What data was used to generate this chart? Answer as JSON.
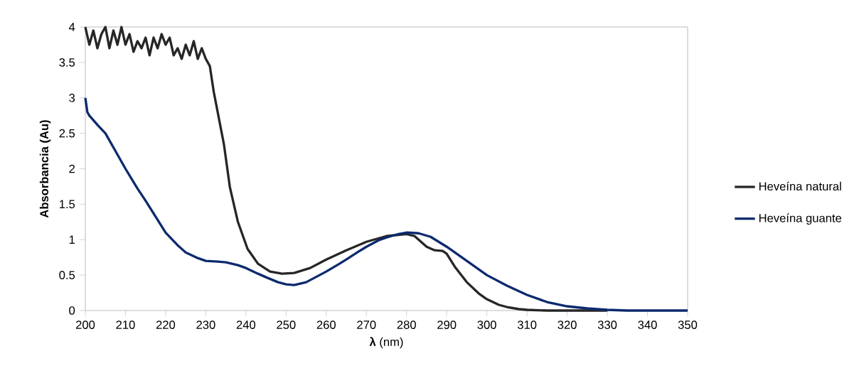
{
  "chart_data": {
    "type": "line",
    "xlabel": "**λ** (nm)",
    "ylabel": "Absorbancia  (Au)",
    "xlim": [
      200,
      350
    ],
    "ylim": [
      0,
      4
    ],
    "xticks": [
      200,
      210,
      220,
      230,
      240,
      250,
      260,
      270,
      280,
      290,
      300,
      310,
      320,
      330,
      340,
      350
    ],
    "yticks": [
      0,
      0.5,
      1,
      1.5,
      2,
      2.5,
      3,
      3.5,
      4
    ],
    "grid": false,
    "legend": "right",
    "marker": "none",
    "line_style": "solid",
    "series": [
      {
        "name": "Heveína natural",
        "color": "#262626",
        "x": [
          200,
          201,
          202,
          203,
          204,
          205,
          206,
          207,
          208,
          209,
          210,
          211,
          212,
          213,
          214,
          215,
          216,
          217,
          218,
          219,
          220,
          221,
          222,
          223,
          224,
          225,
          226,
          227,
          228,
          229,
          230,
          231,
          232,
          234.5,
          236,
          238,
          240.4,
          243,
          246,
          249,
          252,
          256,
          260,
          265,
          270,
          275,
          280,
          282,
          285,
          287,
          289,
          290,
          292,
          295,
          298,
          300,
          303,
          305,
          308,
          310,
          315,
          320,
          330
        ],
        "values": [
          4.0,
          3.75,
          3.95,
          3.7,
          3.9,
          4.0,
          3.7,
          3.95,
          3.75,
          4.0,
          3.75,
          3.9,
          3.65,
          3.8,
          3.7,
          3.85,
          3.6,
          3.85,
          3.7,
          3.9,
          3.75,
          3.85,
          3.6,
          3.7,
          3.55,
          3.75,
          3.6,
          3.8,
          3.55,
          3.7,
          3.55,
          3.45,
          3.08,
          2.35,
          1.74,
          1.25,
          0.87,
          0.66,
          0.55,
          0.52,
          0.53,
          0.6,
          0.72,
          0.85,
          0.97,
          1.05,
          1.08,
          1.05,
          0.9,
          0.85,
          0.84,
          0.8,
          0.62,
          0.4,
          0.24,
          0.16,
          0.08,
          0.05,
          0.02,
          0.01,
          0,
          0,
          0
        ]
      },
      {
        "name": "Heveína guante",
        "color": "#0b2a6e",
        "x": [
          200,
          200.5,
          201,
          203,
          205,
          208,
          210,
          213,
          215,
          218,
          220,
          223,
          225,
          228,
          230,
          233,
          235,
          238,
          240,
          243,
          245,
          248,
          250,
          252,
          255,
          258,
          260,
          263,
          265,
          268,
          270,
          273,
          275,
          278,
          280,
          283,
          286,
          290,
          295,
          300,
          305,
          310,
          315,
          320,
          325,
          330,
          335,
          340,
          350
        ],
        "values": [
          3.0,
          2.8,
          2.75,
          2.62,
          2.5,
          2.2,
          2.0,
          1.72,
          1.55,
          1.28,
          1.1,
          0.92,
          0.82,
          0.74,
          0.7,
          0.69,
          0.68,
          0.64,
          0.6,
          0.52,
          0.47,
          0.4,
          0.37,
          0.36,
          0.4,
          0.49,
          0.55,
          0.65,
          0.72,
          0.83,
          0.9,
          0.99,
          1.03,
          1.08,
          1.1,
          1.09,
          1.04,
          0.9,
          0.7,
          0.5,
          0.35,
          0.22,
          0.12,
          0.06,
          0.03,
          0.01,
          0,
          0,
          0
        ]
      }
    ]
  }
}
